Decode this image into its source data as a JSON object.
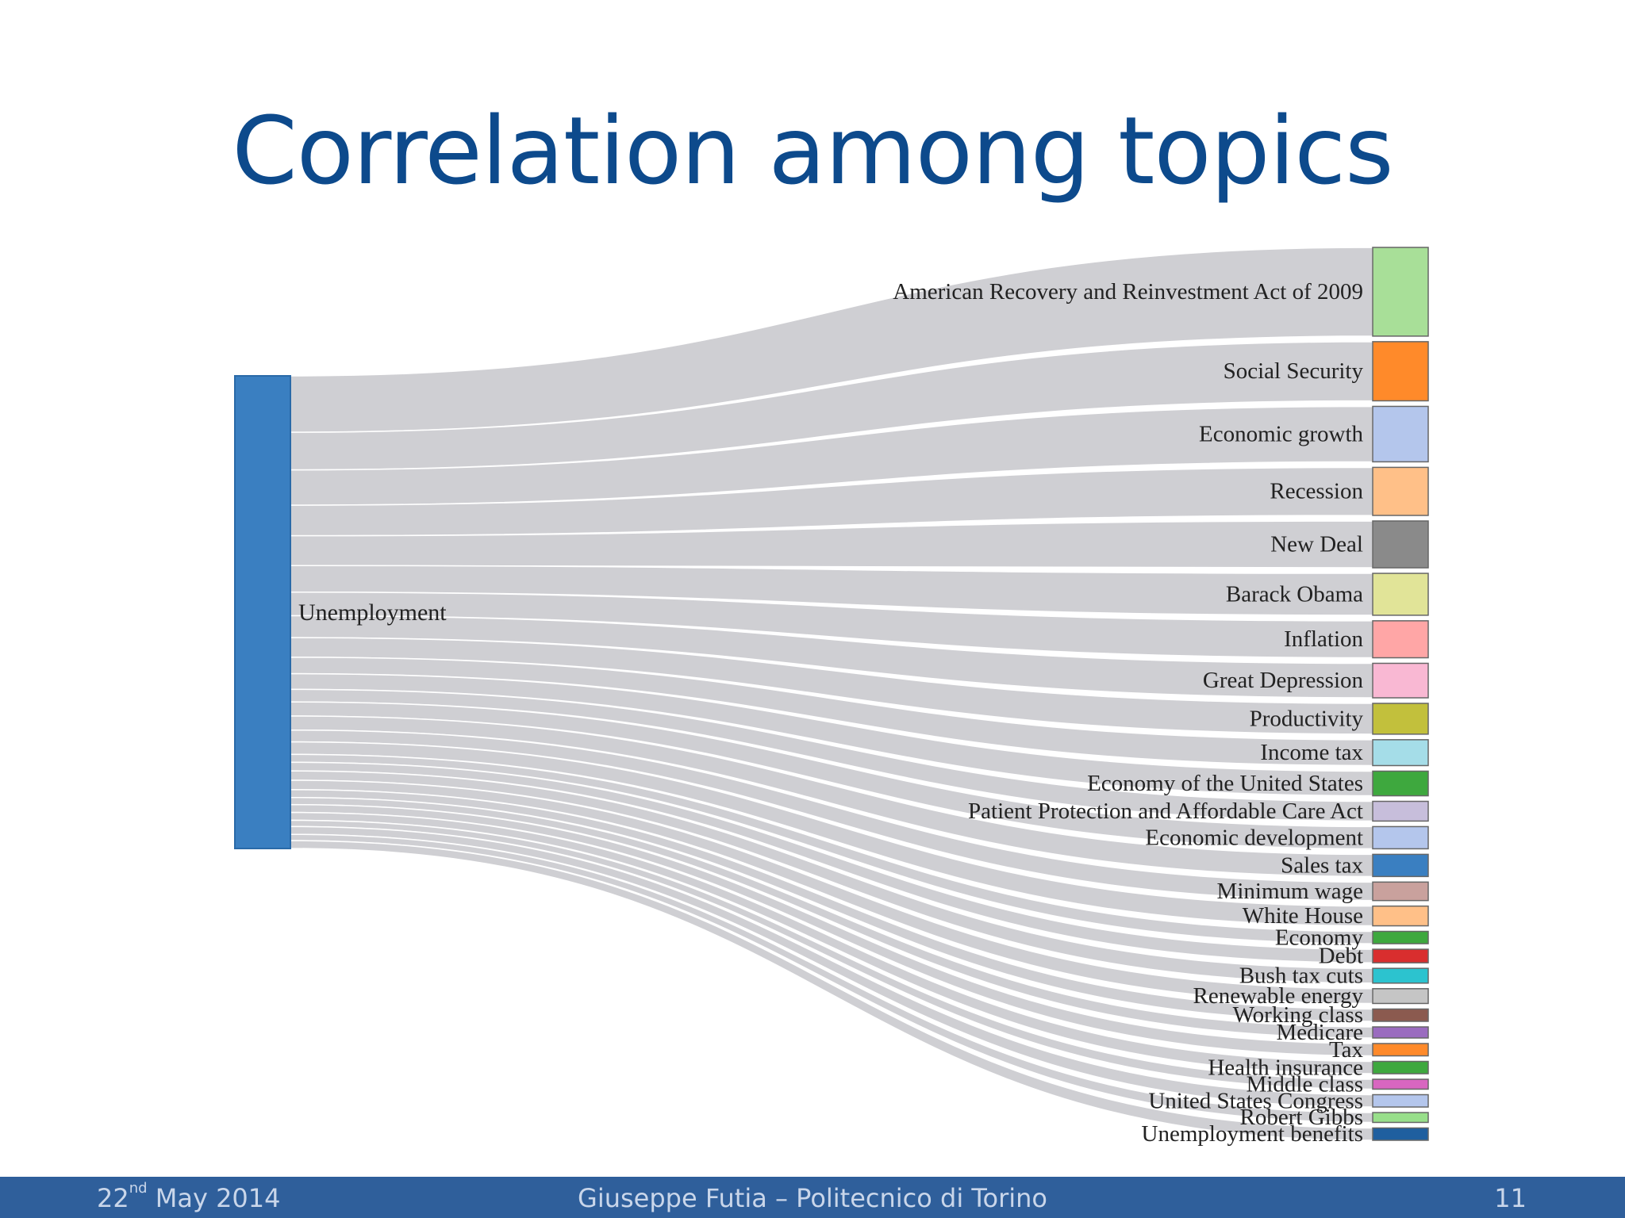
{
  "slide": {
    "title": "Correlation among topics"
  },
  "footer": {
    "date_day": "22",
    "date_suffix": "nd",
    "date_rest": " May 2014",
    "author": "Giuseppe Futia – Politecnico di Torino",
    "page": "11"
  },
  "sankey": {
    "source": {
      "name": "Unemployment",
      "color": "#3a7fc1"
    },
    "link_color": "#cfcfd3",
    "targets": [
      {
        "name": "American Recovery and Reinvestment Act of 2009",
        "weight": 72,
        "color": "#a8df98"
      },
      {
        "name": "Social Security",
        "weight": 48,
        "color": "#ff8a2a"
      },
      {
        "name": "Economic growth",
        "weight": 45,
        "color": "#b4c6ec"
      },
      {
        "name": "Recession",
        "weight": 39,
        "color": "#ffc088"
      },
      {
        "name": "New Deal",
        "weight": 38,
        "color": "#8a8a8a"
      },
      {
        "name": "Barack Obama",
        "weight": 34,
        "color": "#e1e498"
      },
      {
        "name": "Inflation",
        "weight": 30,
        "color": "#ffa6a6"
      },
      {
        "name": "Great Depression",
        "weight": 28,
        "color": "#f9b8d3"
      },
      {
        "name": "Productivity",
        "weight": 25,
        "color": "#c2c03c"
      },
      {
        "name": "Income tax",
        "weight": 21,
        "color": "#a5dde8"
      },
      {
        "name": "Economy of the United States",
        "weight": 20,
        "color": "#3ea83e"
      },
      {
        "name": "Patient Protection and Affordable Care Act",
        "weight": 16,
        "color": "#c7bedb"
      },
      {
        "name": "Economic development",
        "weight": 18,
        "color": "#b4c6ec"
      },
      {
        "name": "Sales tax",
        "weight": 18,
        "color": "#3a7fc1"
      },
      {
        "name": "Minimum wage",
        "weight": 15,
        "color": "#c9a19d"
      },
      {
        "name": "White House",
        "weight": 16,
        "color": "#ffc088"
      },
      {
        "name": "Economy",
        "weight": 10,
        "color": "#3ea83e"
      },
      {
        "name": "Debt",
        "weight": 11,
        "color": "#d92e2e"
      },
      {
        "name": "Bush tax cuts",
        "weight": 12,
        "color": "#2cc3cf"
      },
      {
        "name": "Renewable energy",
        "weight": 12,
        "color": "#c5c5c5"
      },
      {
        "name": "Working class",
        "weight": 10,
        "color": "#8b5a4f"
      },
      {
        "name": "Medicare",
        "weight": 9,
        "color": "#9a6bbf"
      },
      {
        "name": "Tax",
        "weight": 10,
        "color": "#ff8a2a"
      },
      {
        "name": "Health insurance",
        "weight": 10,
        "color": "#3ea83e"
      },
      {
        "name": "Middle class",
        "weight": 8,
        "color": "#d866c0"
      },
      {
        "name": "United States Congress",
        "weight": 10,
        "color": "#b4c6ec"
      },
      {
        "name": "Robert Gibbs",
        "weight": 8,
        "color": "#98df8a"
      },
      {
        "name": "Unemployment benefits",
        "weight": 10,
        "color": "#1f5f9f"
      }
    ]
  }
}
